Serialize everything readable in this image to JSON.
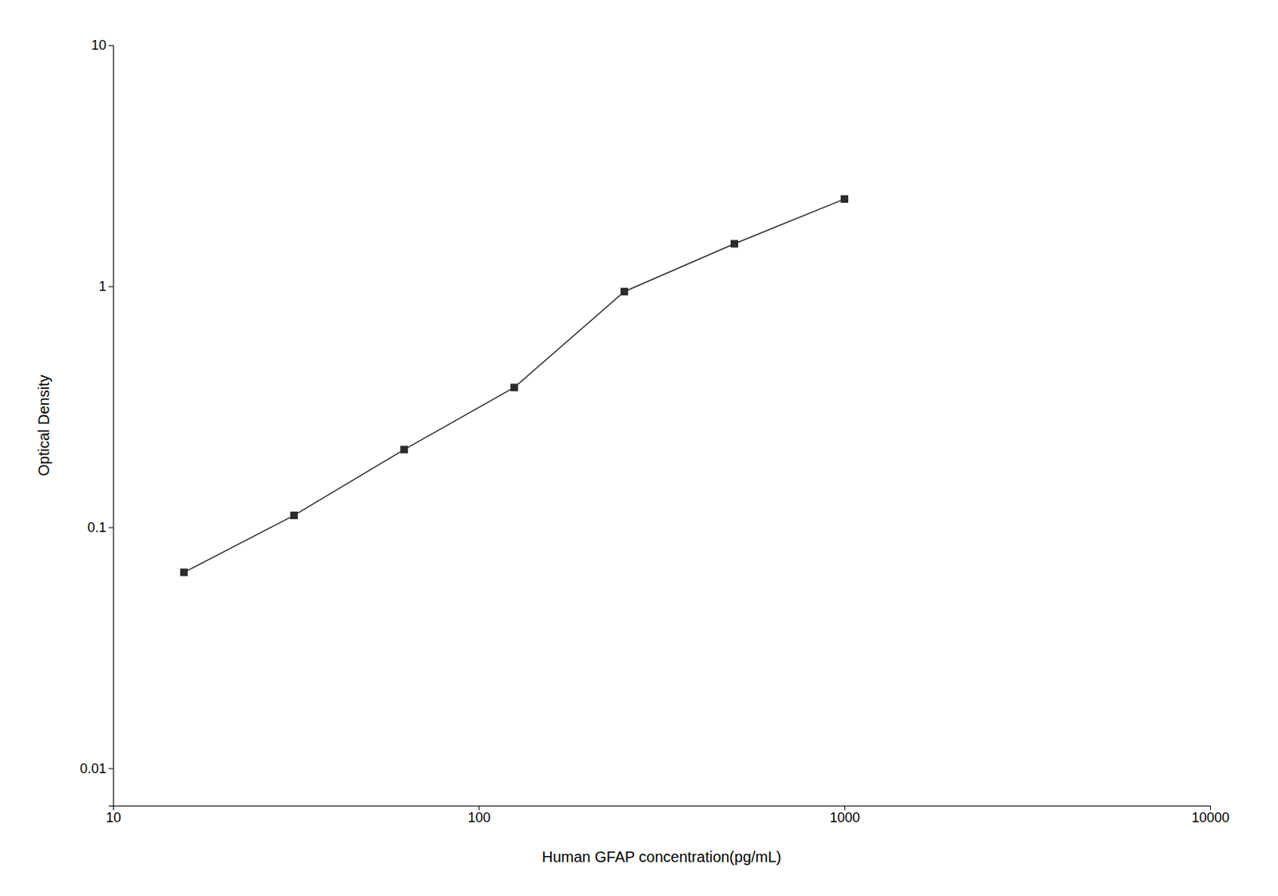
{
  "chart_data": {
    "type": "line",
    "x": [
      15.625,
      31.25,
      62.5,
      125,
      250,
      500,
      1000
    ],
    "values": [
      0.065,
      0.112,
      0.21,
      0.38,
      0.95,
      1.5,
      2.3
    ],
    "xlabel": "Human GFAP concentration(pg/mL)",
    "ylabel": "Optical Density",
    "xlim": [
      10,
      10000
    ],
    "ylim": [
      0.007,
      10
    ],
    "xticks": [
      10,
      100,
      1000,
      10000
    ],
    "yticks": [
      0.01,
      0.1,
      1,
      10
    ],
    "log": true,
    "grid": false,
    "color": "#2b2b2b",
    "marker": "square",
    "line_style": "solid"
  }
}
